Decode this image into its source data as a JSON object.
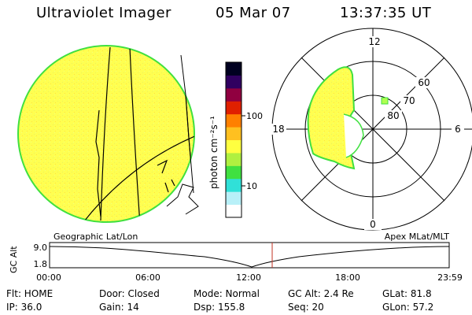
{
  "header": {
    "title": "Ultraviolet Imager",
    "date": "05 Mar 07",
    "time": "13:37:35 UT"
  },
  "colorbar": {
    "unit_label": "photon cm⁻²s⁻¹",
    "ticks": [
      {
        "label": "100",
        "value": 100
      },
      {
        "label": "10",
        "value": 10
      }
    ],
    "colors": [
      "#ffffff",
      "#b8f0f8",
      "#30e0d8",
      "#40e040",
      "#b0f040",
      "#ffff40",
      "#ffc020",
      "#ff8000",
      "#e02000",
      "#900040",
      "#300060",
      "#000020"
    ]
  },
  "panels": {
    "left_label": "Geographic Lat/Lon",
    "right_label": "Apex MLat/MLT"
  },
  "polar": {
    "mlt_labels": {
      "top": "12",
      "bottom": "0",
      "left": "18",
      "right": "6"
    },
    "lat_labels": [
      "60",
      "70",
      "80"
    ]
  },
  "altitude_plot": {
    "ylabel": "GC Alt",
    "yticks": [
      "9.0",
      "1.8"
    ],
    "xticks": [
      "00:00",
      "06:00",
      "12:00",
      "18:00",
      "23:59"
    ],
    "current_time_marker": "13:37"
  },
  "status": {
    "row1": [
      "Flt: HOME",
      "Door: Closed",
      "Mode: Normal",
      "GC Alt: 2.4 Re",
      "GLat:  81.8"
    ],
    "row2": [
      "IP: 36.0",
      "Gain: 14",
      "Dsp:  155.8",
      "Seq: 20",
      "GLon:  57.2"
    ]
  },
  "colors": {
    "image_fill": "#ffff60",
    "image_edge": "#40e040",
    "marker": "#c03020"
  }
}
